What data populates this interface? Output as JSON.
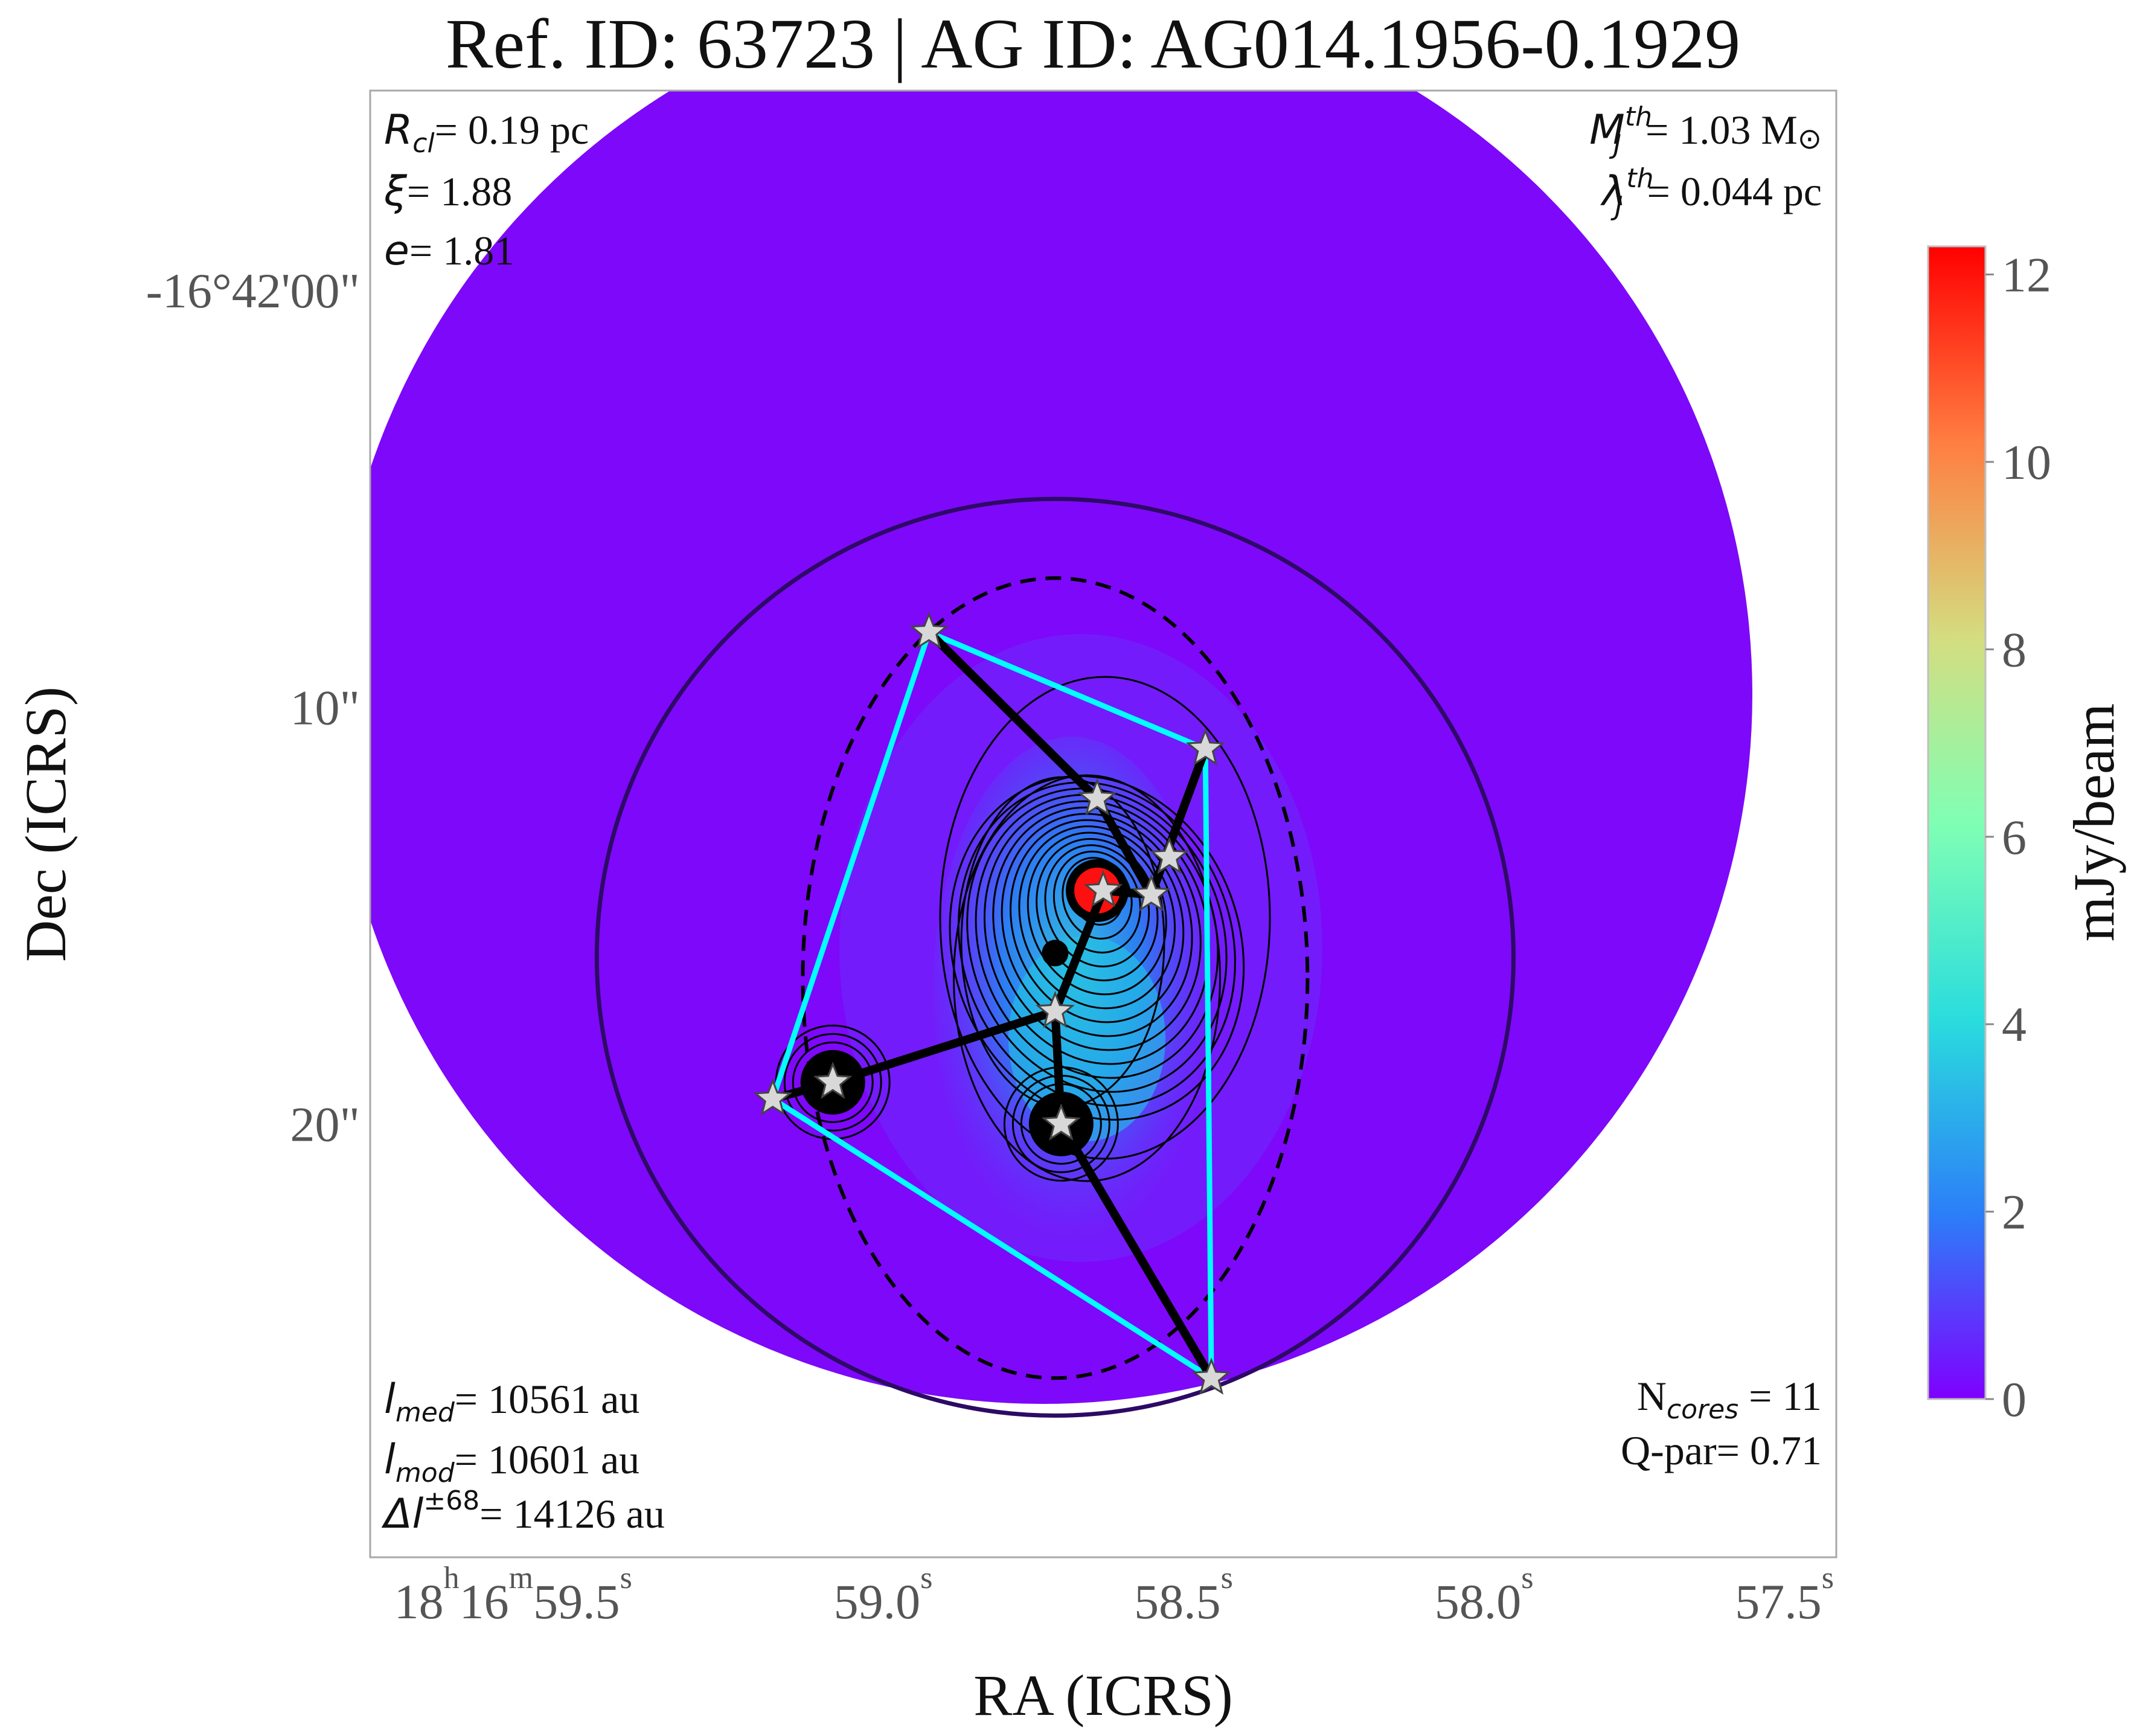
{
  "chart_data": {
    "type": "heatmap",
    "title": "Ref. ID: 63723 | AG ID: AG014.1956-0.1929",
    "xlabel": "RA (ICRS)",
    "ylabel": "Dec (ICRS)",
    "x_ticks": [
      {
        "h": "18",
        "m": "16",
        "s": "59.5"
      },
      {
        "s": "59.0"
      },
      {
        "s": "58.5"
      },
      {
        "s": "58.0"
      },
      {
        "s": "57.5"
      }
    ],
    "x_tick_values_s": [
      59.5,
      59.0,
      58.5,
      58.0,
      57.5
    ],
    "y_ticks": [
      "-16°42'00\"",
      "10\"",
      "20\""
    ],
    "y_tick_values_arcsec": [
      0,
      10,
      20
    ],
    "colorbar": {
      "label": "mJy/beam",
      "range": [
        0,
        12.3
      ],
      "ticks": [
        0,
        2,
        4,
        6,
        8,
        10,
        12
      ],
      "colormap": "rainbow",
      "stops": [
        "#7f00ff",
        "#2c7ef8",
        "#2adddd",
        "#80ffb4",
        "#d4dd80",
        "#ff7e41",
        "#ff0000"
      ]
    },
    "colors": {
      "background_emission": "#7e08f9",
      "mst_edges": "#000000",
      "convex_hull": "#00ffff",
      "core_marker": "#d8d8d8",
      "outer_circle": "#2d0a66"
    },
    "annotations": {
      "top_left": {
        "r_cl": {
          "sym": "R",
          "sub": "cl",
          "val": "= 0.19 pc"
        },
        "xi": {
          "sym": "ξ",
          "val": "= 1.88"
        },
        "e": {
          "sym": "e",
          "val": "= 1.81"
        }
      },
      "top_right": {
        "mj": {
          "sym": "M",
          "sub": "J",
          "sup": "th",
          "val": "= 1.03 M",
          "unit": "⊙"
        },
        "lj": {
          "sym": "λ",
          "sub": "J",
          "sup": "th",
          "val": "= 0.044 pc"
        }
      },
      "bottom_left": {
        "l_med": {
          "sym": "l",
          "sub": "med",
          "val": "= 10561 au"
        },
        "l_mod": {
          "sym": "l",
          "sub": "mod",
          "val": "= 10601 au"
        },
        "dl": {
          "sym": "Δl",
          "sup": "±68",
          "val": "= 14126 au"
        }
      },
      "bottom_right": {
        "ncores": {
          "sym": "N",
          "sub": "cores",
          "val": " = 11"
        },
        "qpar": {
          "val": "Q-par= 0.71"
        }
      }
    },
    "cores": [
      {
        "ra_s": 59.01,
        "dec_arcsec": 8.2
      },
      {
        "ra_s": 58.55,
        "dec_arcsec": 11.0
      },
      {
        "ra_s": 58.73,
        "dec_arcsec": 12.2
      },
      {
        "ra_s": 58.61,
        "dec_arcsec": 13.6
      },
      {
        "ra_s": 58.72,
        "dec_arcsec": 14.4
      },
      {
        "ra_s": 58.64,
        "dec_arcsec": 14.5
      },
      {
        "ra_s": 58.8,
        "dec_arcsec": 17.3
      },
      {
        "ra_s": 59.17,
        "dec_arcsec": 19.0
      },
      {
        "ra_s": 59.27,
        "dec_arcsec": 19.4
      },
      {
        "ra_s": 58.79,
        "dec_arcsec": 20.0
      },
      {
        "ra_s": 58.54,
        "dec_arcsec": 26.1
      }
    ],
    "mst_edges": [
      [
        0,
        2
      ],
      [
        2,
        5
      ],
      [
        5,
        1
      ],
      [
        5,
        4
      ],
      [
        4,
        6
      ],
      [
        6,
        7
      ],
      [
        7,
        8
      ],
      [
        6,
        9
      ],
      [
        9,
        10
      ]
    ],
    "hull": [
      0,
      1,
      10,
      8,
      0
    ],
    "bright_peaks": [
      {
        "ra_s": 58.73,
        "dec_arcsec": 14.4,
        "value": 12.3
      },
      {
        "ra_s": 59.17,
        "dec_arcsec": 19.0,
        "value": 1.5
      },
      {
        "ra_s": 58.79,
        "dec_arcsec": 20.0,
        "value": 5.0
      }
    ],
    "circle_center": {
      "ra_s": 58.8,
      "dec_arcsec": 16.0
    },
    "circle_radius_arcsec": 11.0,
    "ellipse": {
      "ra_s": 58.8,
      "dec_arcsec": 16.5,
      "semi_major_arcsec": 9.6,
      "semi_minor_ra_s": 0.42
    },
    "xlim_s": [
      59.94,
      57.5
    ],
    "ylim_arcsec": [
      -4.8,
      30.4
    ]
  }
}
